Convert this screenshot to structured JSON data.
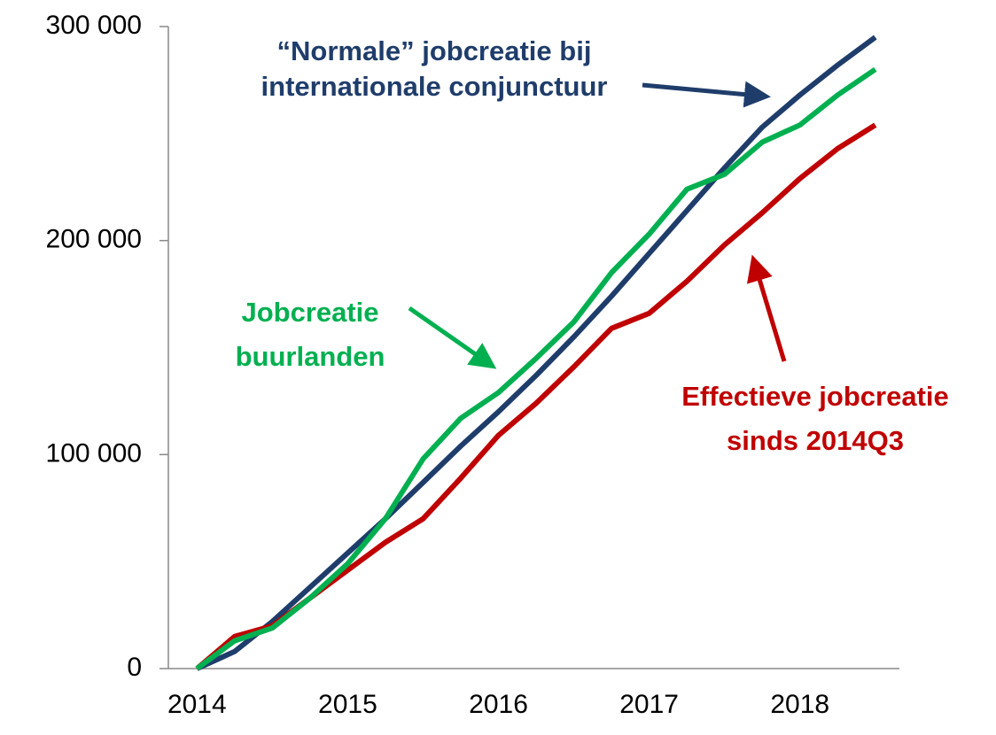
{
  "chart_data": {
    "type": "line",
    "x": [
      2014,
      2014.25,
      2014.5,
      2014.75,
      2015,
      2015.25,
      2015.5,
      2015.75,
      2016,
      2016.25,
      2016.5,
      2016.75,
      2017,
      2017.25,
      2017.5,
      2017.75,
      2018,
      2018.25,
      2018.5
    ],
    "series": [
      {
        "color": "#1f3d6b",
        "values": [
          0,
          8000,
          22000,
          38000,
          54000,
          70000,
          87000,
          104000,
          120000,
          137000,
          155000,
          174000,
          194000,
          214000,
          234000,
          253000,
          268000,
          282000,
          295000
        ]
      },
      {
        "color": "#00b050",
        "values": [
          0,
          13000,
          19000,
          33000,
          49000,
          70000,
          98000,
          117000,
          129000,
          145000,
          162000,
          185000,
          203000,
          224000,
          231000,
          246000,
          254000,
          268000,
          280000
        ]
      },
      {
        "color": "#c00000",
        "values": [
          0,
          15000,
          20000,
          33000,
          46000,
          59000,
          70000,
          89000,
          109000,
          124000,
          141000,
          159000,
          166000,
          181000,
          198000,
          213000,
          229000,
          243000,
          254000
        ]
      }
    ],
    "xlim": [
      2013.81,
      2018.66
    ],
    "xticks": [
      2014,
      2015,
      2016,
      2017,
      2018
    ],
    "ylim": [
      0,
      300000
    ],
    "yticks": [
      0,
      {
        "value": 100000,
        "label": "100 000"
      },
      {
        "value": 200000,
        "label": "200 000"
      },
      {
        "value": 300000,
        "label": "300 000"
      }
    ],
    "annotations": [
      {
        "lines": [
          "“Normale” jobcreatie bij",
          "internationale conjunctuur"
        ],
        "color": "#1f3d6b"
      },
      {
        "lines": [
          "Jobcreatie",
          "buurlanden"
        ],
        "color": "#00b050"
      },
      {
        "lines": [
          "Effectieve jobcreatie",
          "sinds 2014Q3"
        ],
        "color": "#c00000"
      }
    ]
  }
}
